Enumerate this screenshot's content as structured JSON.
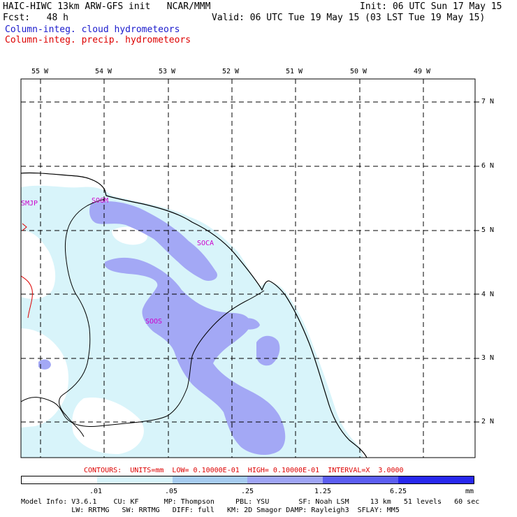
{
  "header": {
    "line1_left": "HAIC-HIWC 13km ARW-GFS init   NCAR/MMM",
    "line1_right": "Init: 06 UTC Sun 17 May 15",
    "line2_left": "Fcst:   48 h",
    "line2_right": "Valid: 06 UTC Tue 19 May 15 (03 LST Tue 19 May 15)",
    "field1": "Column-integ. cloud hydrometeors",
    "field2": "Column-integ. precip. hydrometeors"
  },
  "map": {
    "lon_labels": [
      "55 W",
      "54 W",
      "53 W",
      "52 W",
      "51 W",
      "50 W",
      "49 W"
    ],
    "lat_labels": [
      "7 N",
      "6 N",
      "5 N",
      "4 N",
      "3 N",
      "2 N"
    ],
    "stations": [
      "SMJP",
      "SOGM",
      "SOCA",
      "SOOS"
    ]
  },
  "contours_text": "CONTOURS:  UNITS=mm  LOW= 0.10000E-01  HIGH= 0.10000E-01  INTERVAL=X  3.0000",
  "legend": {
    "ticks": [
      ".01",
      ".05",
      ".25",
      "1.25",
      "6.25",
      "mm"
    ],
    "colors": [
      "#ffffff",
      "#d8f4fa",
      "#a7ccf0",
      "#9fa5f5",
      "#5c5ef2",
      "#2828ee",
      "#0000ee"
    ]
  },
  "footer": {
    "line1": "Model Info: V3.6.1    CU: KF      MP: Thompson     PBL: YSU       SF: Noah LSM     13 km   51 levels   60 sec",
    "line2": "            LW: RRTMG   SW: RRTMG   DIFF: full   KM: 2D Smagor DAMP: Rayleigh3  SFLAY: MM5"
  },
  "colors": {
    "light_cyan": "#d8f4fa",
    "lavender": "#a3a8f5",
    "grid": "#000000",
    "coast": "#000000",
    "station_label": "#cc00cc",
    "border_red": "#dd0000"
  }
}
